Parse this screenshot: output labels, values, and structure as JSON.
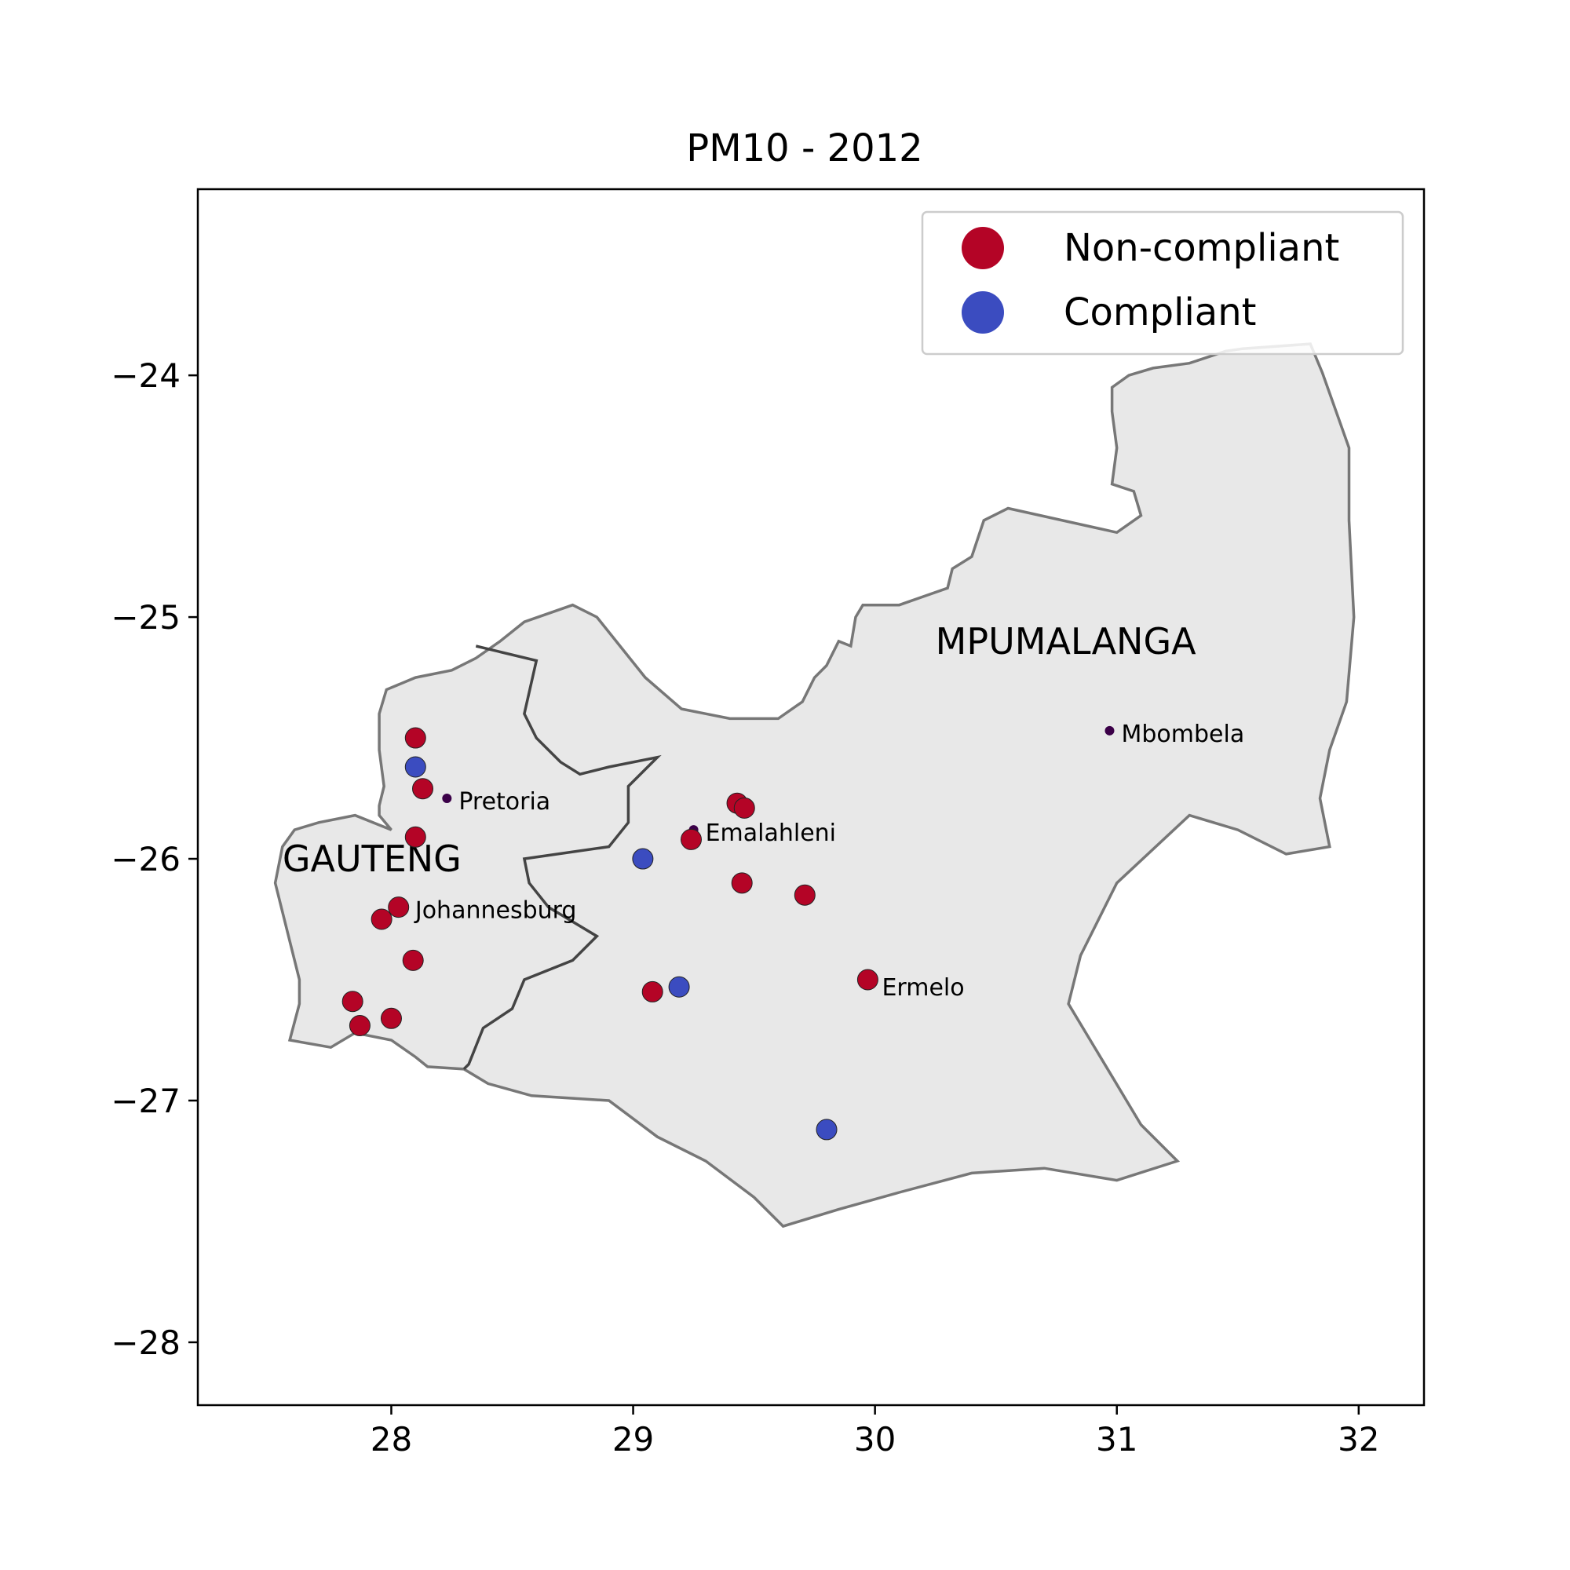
{
  "title": "PM10 - 2012",
  "axes": {
    "xlim": [
      27.2,
      32.27
    ],
    "ylim": [
      -28.26,
      -23.23
    ],
    "xticks": [
      {
        "value": 28,
        "label": "28"
      },
      {
        "value": 29,
        "label": "29"
      },
      {
        "value": 30,
        "label": "30"
      },
      {
        "value": 31,
        "label": "31"
      },
      {
        "value": 32,
        "label": "32"
      }
    ],
    "yticks": [
      {
        "value": -24,
        "label": "−24"
      },
      {
        "value": -25,
        "label": "−25"
      },
      {
        "value": -26,
        "label": "−26"
      },
      {
        "value": -27,
        "label": "−27"
      },
      {
        "value": -28,
        "label": "−28"
      }
    ]
  },
  "legend": {
    "placement": "top-right",
    "items": [
      {
        "label": "Non-compliant",
        "color": "#b40426"
      },
      {
        "label": "Compliant",
        "color": "#3b4cc0"
      }
    ]
  },
  "regions": [
    {
      "name": "GAUTENG",
      "label_lon": 27.55,
      "label_lat": -26.0
    },
    {
      "name": "MPUMALANGA",
      "label_lon": 30.25,
      "label_lat": -25.1
    }
  ],
  "region_style": {
    "fill": "#e8e8e8",
    "outer_stroke": "#777777",
    "border_stroke": "#444444"
  },
  "cities": [
    {
      "name": "Pretoria",
      "lon": 28.23,
      "lat": -25.75
    },
    {
      "name": "Emalahleni",
      "lon": 29.25,
      "lat": -25.88
    },
    {
      "name": "Johannesburg",
      "lon": 28.05,
      "lat": -26.2
    },
    {
      "name": "Mbombela",
      "lon": 30.97,
      "lat": -25.47
    },
    {
      "name": "Ermelo",
      "lon": 29.98,
      "lat": -26.52
    }
  ],
  "city_marker_color": "#3b0048",
  "chart_data": {
    "type": "scatter",
    "title": "PM10 - 2012",
    "xlim": [
      27.2,
      32.27
    ],
    "ylim": [
      -28.26,
      -23.23
    ],
    "grid": false,
    "legend_placement": "top-right",
    "series": [
      {
        "name": "Non-compliant",
        "color": "#b40426",
        "points": [
          {
            "x": 28.1,
            "y": -25.5
          },
          {
            "x": 28.13,
            "y": -25.71
          },
          {
            "x": 28.1,
            "y": -25.91
          },
          {
            "x": 28.03,
            "y": -26.2
          },
          {
            "x": 27.96,
            "y": -26.25
          },
          {
            "x": 28.09,
            "y": -26.42
          },
          {
            "x": 27.84,
            "y": -26.59
          },
          {
            "x": 27.87,
            "y": -26.69
          },
          {
            "x": 28.0,
            "y": -26.66
          },
          {
            "x": 29.43,
            "y": -25.77
          },
          {
            "x": 29.46,
            "y": -25.79
          },
          {
            "x": 29.24,
            "y": -25.92
          },
          {
            "x": 29.45,
            "y": -26.1
          },
          {
            "x": 29.71,
            "y": -26.15
          },
          {
            "x": 29.97,
            "y": -26.5
          },
          {
            "x": 29.08,
            "y": -26.55
          }
        ]
      },
      {
        "name": "Compliant",
        "color": "#3b4cc0",
        "points": [
          {
            "x": 28.1,
            "y": -25.62
          },
          {
            "x": 29.04,
            "y": -26.0
          },
          {
            "x": 29.19,
            "y": -26.53
          },
          {
            "x": 29.8,
            "y": -27.12
          }
        ]
      }
    ]
  }
}
